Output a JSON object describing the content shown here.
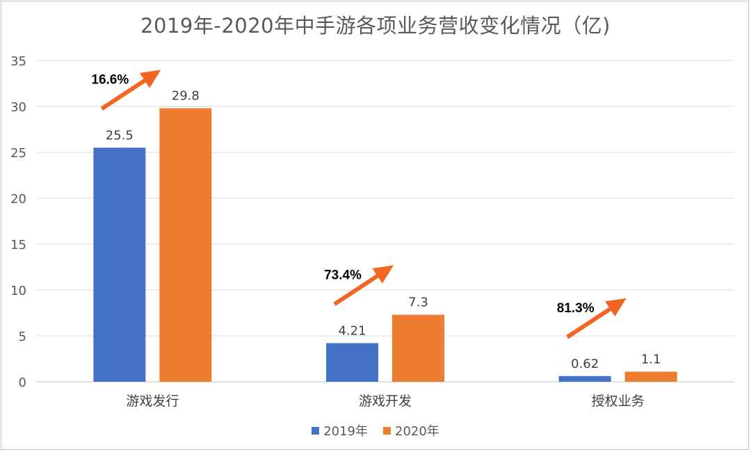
{
  "chart_data": {
    "type": "bar",
    "title": "2019年-2020年中手游各项业务营收变化情况（亿)",
    "categories": [
      "游戏发行",
      "游戏开发",
      "授权业务"
    ],
    "series": [
      {
        "name": "2019年",
        "color": "#4472C4",
        "values": [
          25.5,
          4.21,
          0.62
        ],
        "labels": [
          "25.5",
          "4.21",
          "0.62"
        ]
      },
      {
        "name": "2020年",
        "color": "#ED7D31",
        "values": [
          29.8,
          7.3,
          1.1
        ],
        "labels": [
          "29.8",
          "7.3",
          "1.1"
        ]
      }
    ],
    "growth_annotations": [
      "16.6%",
      "73.4%",
      "81.3%"
    ],
    "ylim": [
      0,
      35
    ],
    "yticks": [
      "0",
      "5",
      "10",
      "15",
      "20",
      "25",
      "30",
      "35"
    ],
    "grid": true,
    "legend_position": "bottom",
    "arrow_color": "#F26522"
  }
}
